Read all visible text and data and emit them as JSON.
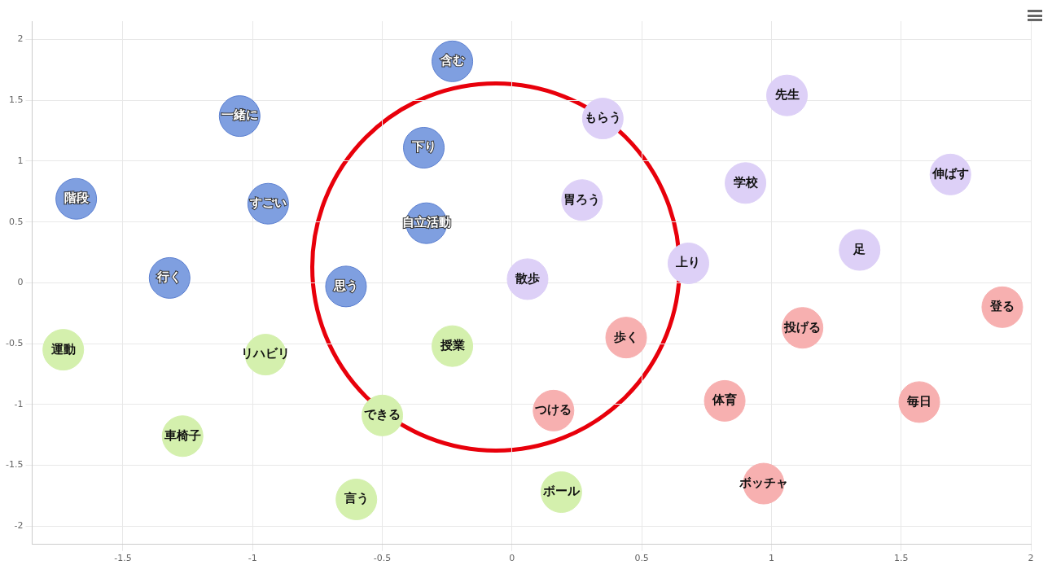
{
  "chart_data": {
    "type": "scatter",
    "xlim": [
      -1.85,
      2
    ],
    "ylim": [
      -2.15,
      2.15
    ],
    "xticks": [
      -1.5,
      -1,
      -0.5,
      0,
      0.5,
      1,
      1.5,
      2
    ],
    "yticks": [
      -2,
      -1.5,
      -1,
      -0.5,
      0,
      0.5,
      1,
      1.5,
      2
    ],
    "grid": true,
    "legend": false,
    "marker": "circle",
    "series": [
      {
        "color": "#7f9fe0",
        "x": [
          -0.23,
          -1.05,
          -0.34,
          -1.68,
          -0.94,
          -0.33,
          -1.32,
          -0.64
        ],
        "values": [
          1.82,
          1.37,
          1.11,
          0.69,
          0.65,
          0.49,
          0.04,
          -0.03
        ],
        "value_labels": [
          "含む",
          "一緒に",
          "下り",
          "階段",
          "すごい",
          "自立活動",
          "行く",
          "思う"
        ]
      },
      {
        "color": "#ddd0f7",
        "x": [
          0.35,
          1.06,
          0.9,
          1.69,
          0.27,
          1.34,
          0.68,
          0.06
        ],
        "values": [
          1.35,
          1.54,
          0.82,
          0.89,
          0.68,
          0.27,
          0.16,
          0.03
        ],
        "value_labels": [
          "もらう",
          "先生",
          "学校",
          "伸ばす",
          "胃ろう",
          "足",
          "上り",
          "散歩"
        ]
      },
      {
        "color": "#f7b0b0",
        "x": [
          1.89,
          1.12,
          0.44,
          0.82,
          1.57,
          0.16,
          0.97
        ],
        "values": [
          -0.2,
          -0.37,
          -0.45,
          -0.97,
          -0.98,
          -1.05,
          -1.65
        ],
        "value_labels": [
          "登る",
          "投げる",
          "歩く",
          "体育",
          "毎日",
          "つける",
          "ボッチャ"
        ]
      },
      {
        "color": "#d4f0ad",
        "x": [
          -1.73,
          -0.95,
          -0.23,
          -0.5,
          -1.27,
          -0.6,
          0.19
        ],
        "values": [
          -0.55,
          -0.59,
          -0.52,
          -1.09,
          -1.26,
          -1.78,
          -1.72
        ],
        "value_labels": [
          "運動",
          "リハビリ",
          "授業",
          "できる",
          "車椅子",
          "言う",
          "ボール"
        ]
      }
    ]
  }
}
